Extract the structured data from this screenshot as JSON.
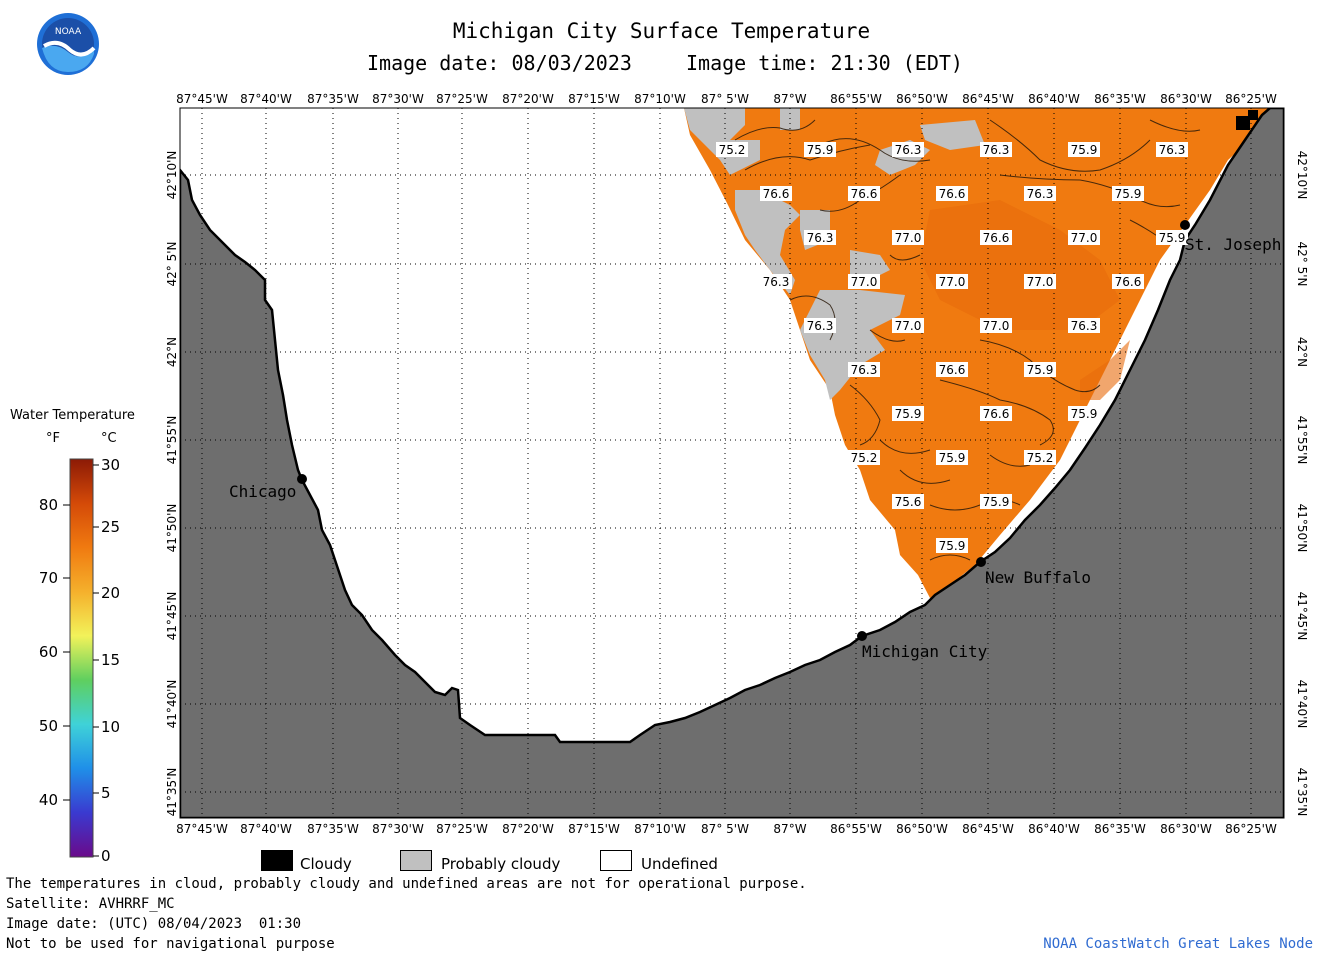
{
  "header": {
    "title": "Michigan City Surface Temperature",
    "subtitle_date": "Image date: 08/03/2023",
    "subtitle_time": "Image time: 21:30 (EDT)"
  },
  "logo": {
    "text": "NOAA"
  },
  "axes": {
    "lon_labels": [
      "87°45'W",
      "87°40'W",
      "87°35'W",
      "87°30'W",
      "87°25'W",
      "87°20'W",
      "87°15'W",
      "87°10'W",
      "87° 5'W",
      "87°W",
      "86°55'W",
      "86°50'W",
      "86°45'W",
      "86°40'W",
      "86°35'W",
      "86°30'W",
      "86°25'W"
    ],
    "lat_labels": [
      "42°10'N",
      "42° 5'N",
      "42°N",
      "41°55'N",
      "41°50'N",
      "41°45'N",
      "41°40'N",
      "41°35'N"
    ]
  },
  "cities": [
    {
      "name": "Chicago"
    },
    {
      "name": "Michigan City"
    },
    {
      "name": "New Buffalo"
    },
    {
      "name": "St. Joseph"
    }
  ],
  "temperature_labels": [
    "75.2",
    "75.9",
    "76.3",
    "76.3",
    "75.9",
    "76.3",
    "76.6",
    "76.6",
    "76.6",
    "76.3",
    "75.9",
    "76.3",
    "77.0",
    "76.6",
    "77.0",
    "75.9",
    "76.3",
    "77.0",
    "77.0",
    "77.0",
    "76.6",
    "76.3",
    "77.0",
    "77.0",
    "76.3",
    "76.3",
    "76.6",
    "75.9",
    "75.9",
    "76.6",
    "75.9",
    "75.2",
    "75.9",
    "75.2",
    "75.6",
    "75.9"
  ],
  "legend": {
    "title": "Water Temperature",
    "unit_f": "°F",
    "unit_c": "°C",
    "f_ticks": [
      "80",
      "70",
      "60",
      "50",
      "40"
    ],
    "c_ticks": [
      "30",
      "25",
      "20",
      "15",
      "10",
      "5",
      "0"
    ],
    "colors": [
      "#6a0a8a",
      "#3a3ad0",
      "#1f8fe8",
      "#3fd2d8",
      "#5fcf5f",
      "#f2f25a",
      "#f5b02c",
      "#f07a10",
      "#d44a08",
      "#8c1a06"
    ]
  },
  "key": {
    "cloudy": "Cloudy",
    "probably_cloudy": "Probably cloudy",
    "undefined": "Undefined",
    "cloudy_color": "#000000",
    "probably_cloudy_color": "#c0c0c0",
    "undefined_color": "#ffffff"
  },
  "footer": {
    "line1": "The temperatures in cloud, probably cloudy and undefined areas are not for operational purpose.",
    "line2": "Satellite: AVHRRF_MC",
    "line3": "Image date: (UTC) 08/04/2023  01:30",
    "line4": "Not to be used for navigational purpose",
    "credit": "NOAA CoastWatch Great Lakes Node"
  },
  "colors": {
    "land": "#6e6e6e",
    "water_warm": "#f07a10",
    "water_warmer": "#e86a0c",
    "cloud_probable": "#c0c0c0"
  }
}
